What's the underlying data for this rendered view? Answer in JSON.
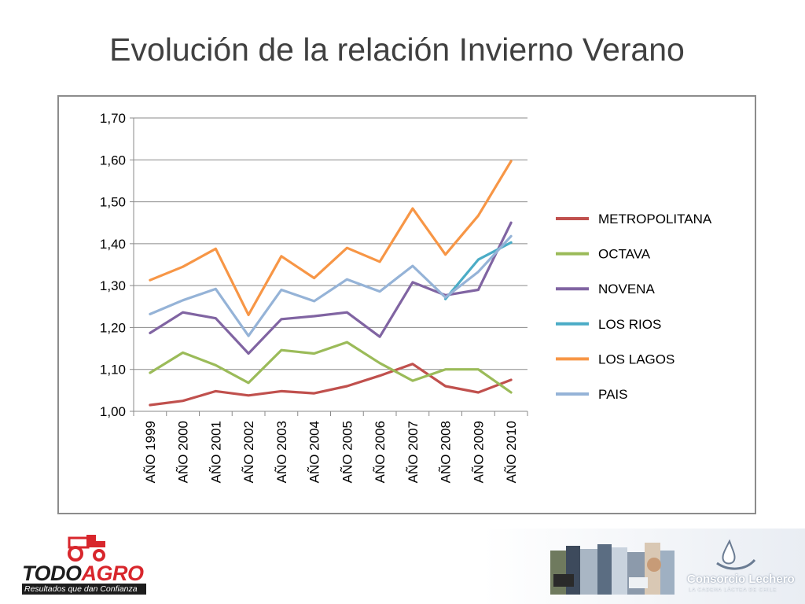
{
  "slide": {
    "title": "Evolución de la relación Invierno Verano"
  },
  "chart_data": {
    "type": "line",
    "title": "",
    "xlabel": "",
    "ylabel": "",
    "categories": [
      "AÑO 1999",
      "AÑO 2000",
      "AÑO 2001",
      "AÑO 2002",
      "AÑO 2003",
      "AÑO 2004",
      "AÑO 2005",
      "AÑO 2006",
      "AÑO 2007",
      "AÑO 2008",
      "AÑO 2009",
      "AÑO 2010"
    ],
    "ylim": [
      1.0,
      1.7
    ],
    "yticks": [
      1.0,
      1.1,
      1.2,
      1.3,
      1.4,
      1.5,
      1.6,
      1.7
    ],
    "ytick_labels": [
      "1,00",
      "1,10",
      "1,20",
      "1,30",
      "1,40",
      "1,50",
      "1,60",
      "1,70"
    ],
    "grid": "horizontal",
    "legend_position": "right",
    "series": [
      {
        "name": "METROPOLITANA",
        "color": "#c0504d",
        "values": [
          1.015,
          1.025,
          1.048,
          1.038,
          1.048,
          1.043,
          1.06,
          1.085,
          1.113,
          1.06,
          1.045,
          1.075
        ]
      },
      {
        "name": "OCTAVA",
        "color": "#9bbb59",
        "values": [
          1.092,
          1.14,
          1.11,
          1.068,
          1.146,
          1.138,
          1.165,
          1.115,
          1.073,
          1.1,
          1.1,
          1.045
        ]
      },
      {
        "name": "NOVENA",
        "color": "#8064a2",
        "values": [
          1.187,
          1.236,
          1.222,
          1.138,
          1.22,
          1.227,
          1.236,
          1.178,
          1.308,
          1.277,
          1.29,
          1.45
        ]
      },
      {
        "name": "LOS RIOS",
        "color": "#4bacc6",
        "values": [
          null,
          null,
          null,
          null,
          null,
          null,
          null,
          null,
          null,
          1.268,
          1.362,
          1.403
        ]
      },
      {
        "name": "LOS LAGOS",
        "color": "#f79646",
        "values": [
          1.313,
          1.345,
          1.388,
          1.23,
          1.37,
          1.318,
          1.39,
          1.357,
          1.484,
          1.374,
          1.467,
          1.597
        ]
      },
      {
        "name": "PAIS",
        "color": "#95b3d7",
        "values": [
          1.232,
          1.265,
          1.292,
          1.18,
          1.29,
          1.263,
          1.315,
          1.286,
          1.347,
          1.272,
          1.333,
          1.418
        ]
      }
    ]
  },
  "footer": {
    "brand_left": {
      "name_part1": "TODO",
      "name_part2": "AGRO",
      "slogan": "Resultados que dan Confianza",
      "accent_color": "#d8262c",
      "icon": "tractor-icon"
    },
    "photo_strip_icon": "dairy-photos",
    "brand_right": {
      "name": "Consorcio Lechero",
      "tagline": "LA CADENA LÁCTEA DE CHILE",
      "icon": "milk-drop-icon",
      "color": "#6b7c93"
    }
  }
}
